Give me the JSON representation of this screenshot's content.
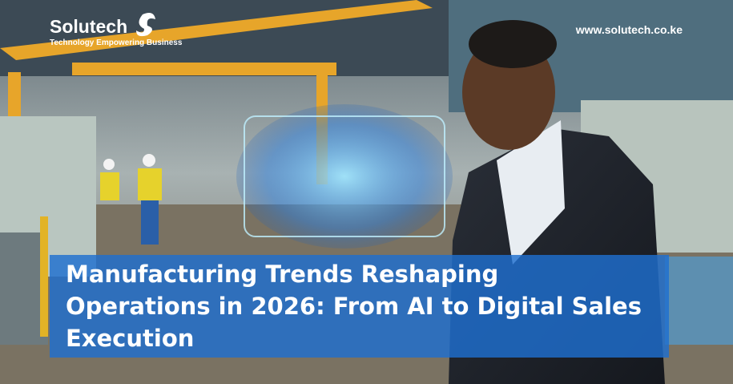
{
  "brand": {
    "name": "Solutech",
    "tagline": "Technology Empowering Business",
    "website": "www.solutech.co.ke"
  },
  "headline": {
    "lines": [
      "Manufacturing Trends Reshaping",
      "Operations in 2026: From AI to Digital Sales",
      "Execution"
    ]
  }
}
